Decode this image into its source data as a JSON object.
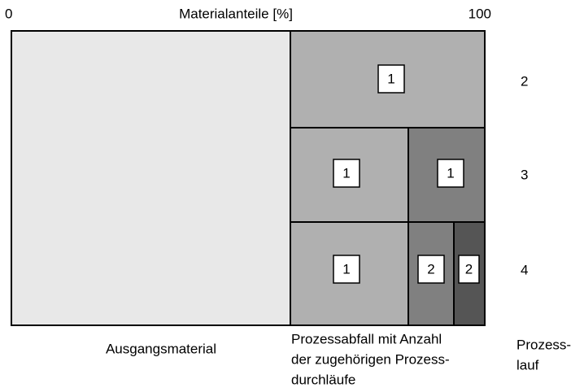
{
  "axis": {
    "start": "0",
    "title": "Materialanteile [%]",
    "end": "100"
  },
  "rows": [
    {
      "label": "2",
      "cells": [
        {
          "label": "1"
        }
      ]
    },
    {
      "label": "3",
      "cells": [
        {
          "label": "1"
        },
        {
          "label": "1"
        }
      ]
    },
    {
      "label": "4",
      "cells": [
        {
          "label": "1"
        },
        {
          "label": "2"
        },
        {
          "label": "2"
        }
      ]
    }
  ],
  "captions": {
    "base": "Ausgangsmaterial",
    "waste": [
      "Prozessabfall mit Anzahl",
      "der zugehörigen Prozess-",
      "durchläufe"
    ],
    "run": [
      "Prozess-",
      "lauf"
    ]
  }
}
